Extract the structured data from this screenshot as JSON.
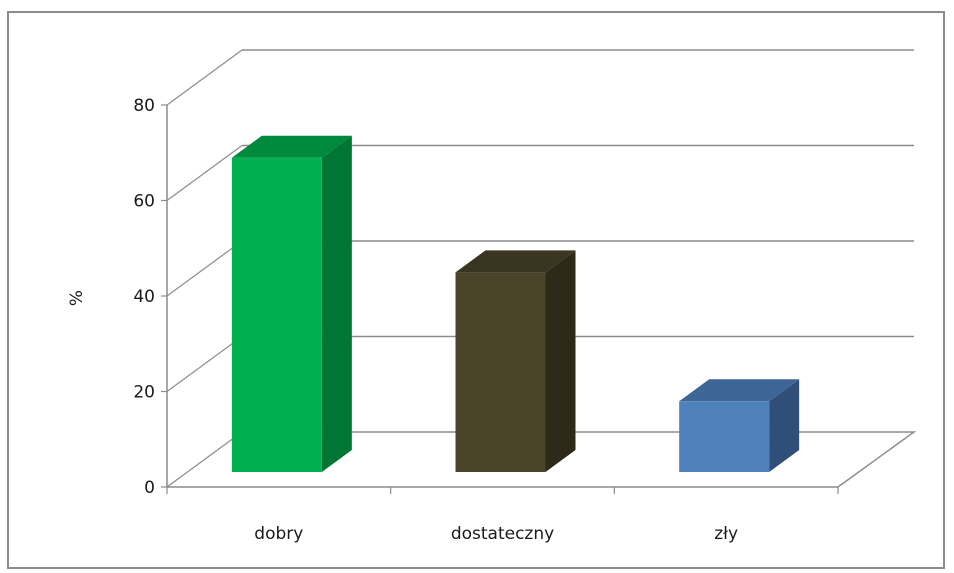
{
  "chart_data": {
    "type": "bar",
    "categories": [
      "dobry",
      "dostateczny",
      "zły"
    ],
    "values": [
      70,
      46,
      19
    ],
    "ylabel": "%",
    "xlabel": "",
    "ylim": [
      0,
      80
    ],
    "yticks": [
      "0",
      "20",
      "40",
      "60",
      "80"
    ],
    "grid": true,
    "legend": "none",
    "colors": {
      "dobry": {
        "front": "#00B050",
        "side": "#007534",
        "top": "#008A3E"
      },
      "dostateczny": {
        "front": "#4A442A",
        "side": "#2E2A1A",
        "top": "#3A3521"
      },
      "zły": {
        "front": "#4F81BD",
        "side": "#2F4F78",
        "top": "#3D6596"
      }
    }
  }
}
